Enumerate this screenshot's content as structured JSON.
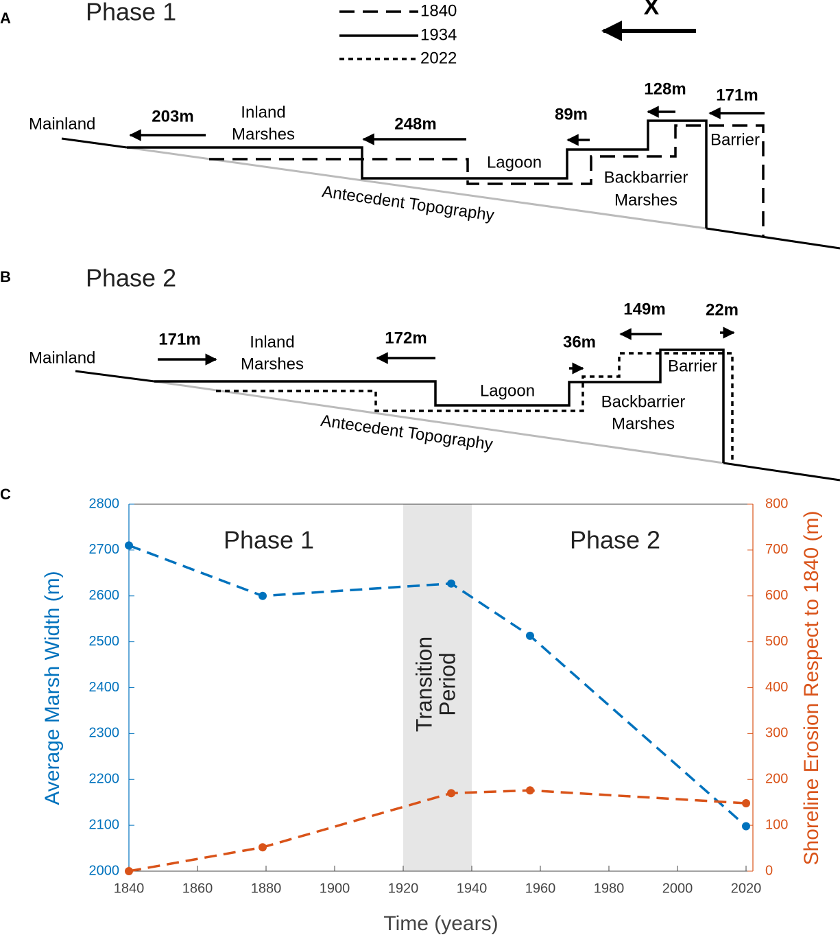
{
  "panel_a": {
    "label": "A",
    "title": "Phase 1",
    "legend": [
      "1840",
      "1934",
      "2022"
    ],
    "direction": "X",
    "distances": [
      "203m",
      "248m",
      "89m",
      "128m",
      "171m"
    ],
    "places": {
      "mainland": "Mainland",
      "inland_marshes": [
        "Inland",
        "Marshes"
      ],
      "lagoon": "Lagoon",
      "backbarrier_marshes": [
        "Backbarrier",
        "Marshes"
      ],
      "barrier": "Barrier",
      "antecedent_topography": "Antecedent Topography"
    }
  },
  "panel_b": {
    "label": "B",
    "title": "Phase 2",
    "distances": [
      "171m",
      "172m",
      "36m",
      "149m",
      "22m"
    ],
    "places": {
      "mainland": "Mainland",
      "inland_marshes": [
        "Inland",
        "Marshes"
      ],
      "lagoon": "Lagoon",
      "backbarrier_marshes": [
        "Backbarrier",
        "Marshes"
      ],
      "barrier": "Barrier",
      "antecedent_topography": "Antecedent Topography"
    }
  },
  "panel_c_label": "C",
  "chart_data": {
    "type": "line",
    "x": [
      1840,
      1879,
      1934,
      1957,
      2020
    ],
    "series": [
      {
        "name": "Average Marsh Width",
        "color": "#0072bd",
        "values": [
          2710,
          2600,
          2627,
          2513,
          2098
        ]
      },
      {
        "name": "Shoreline Erosion",
        "color": "#d95319",
        "axis": "y2",
        "values": [
          0,
          52,
          170,
          176,
          148
        ]
      }
    ],
    "xlim": [
      1840,
      2022
    ],
    "xticks": [
      1840,
      1860,
      1880,
      1900,
      1920,
      1940,
      1960,
      1980,
      2000,
      2020
    ],
    "ylim": [
      2000,
      2800
    ],
    "yticks": [
      2000,
      2100,
      2200,
      2300,
      2400,
      2500,
      2600,
      2700,
      2800
    ],
    "y2lim": [
      0,
      800
    ],
    "y2ticks": [
      0,
      100,
      200,
      300,
      400,
      500,
      600,
      700,
      800
    ],
    "xlabel": "Time (years)",
    "ylabel": "Average Marsh Width (m)",
    "y2label": "Shoreline Erosion Respect to 1840 (m)",
    "shaded_region": {
      "x": [
        1920,
        1940
      ],
      "label": [
        "Transition",
        "Period"
      ]
    },
    "annotations": [
      "Phase 1",
      "Phase 2"
    ]
  }
}
